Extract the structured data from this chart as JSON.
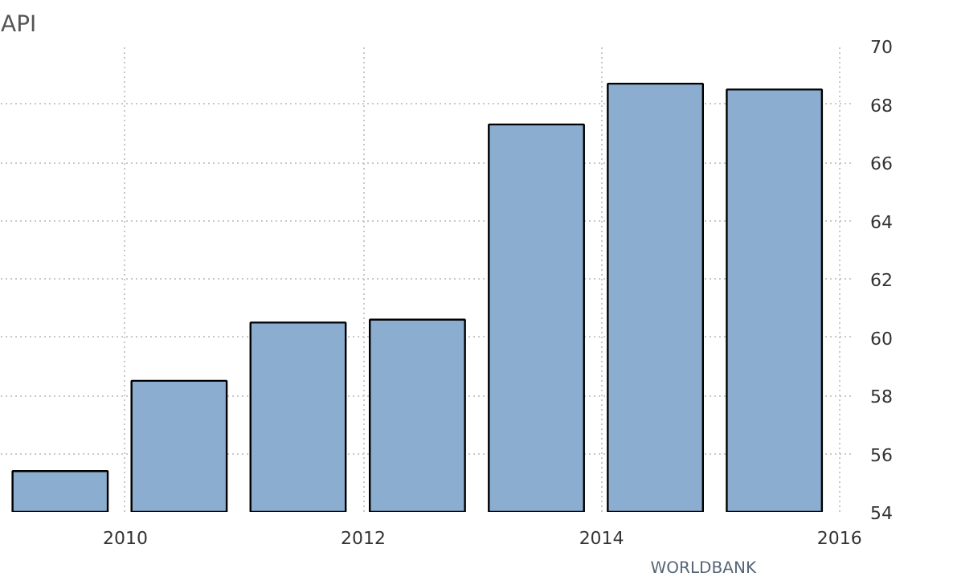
{
  "chart_data": {
    "type": "bar",
    "title": "API",
    "x": [
      "2009-06-15",
      "2010-06-15",
      "2011-06-15",
      "2012-06-15",
      "2013-06-15",
      "2014-06-15",
      "2015-06-15"
    ],
    "values": [
      55.4,
      58.5,
      60.5,
      60.6,
      67.3,
      68.7,
      68.5
    ],
    "color": "#8aadd0",
    "xlim": [
      "2008-12-15",
      "2016-02-10"
    ],
    "xticks": [
      "2010",
      "2012",
      "2014",
      "2016"
    ],
    "ylim": [
      54,
      70
    ],
    "yticks": [
      54,
      56,
      58,
      60,
      62,
      64,
      66,
      68,
      70
    ],
    "grid": true,
    "annotations": [
      "WORLDBANK"
    ]
  }
}
